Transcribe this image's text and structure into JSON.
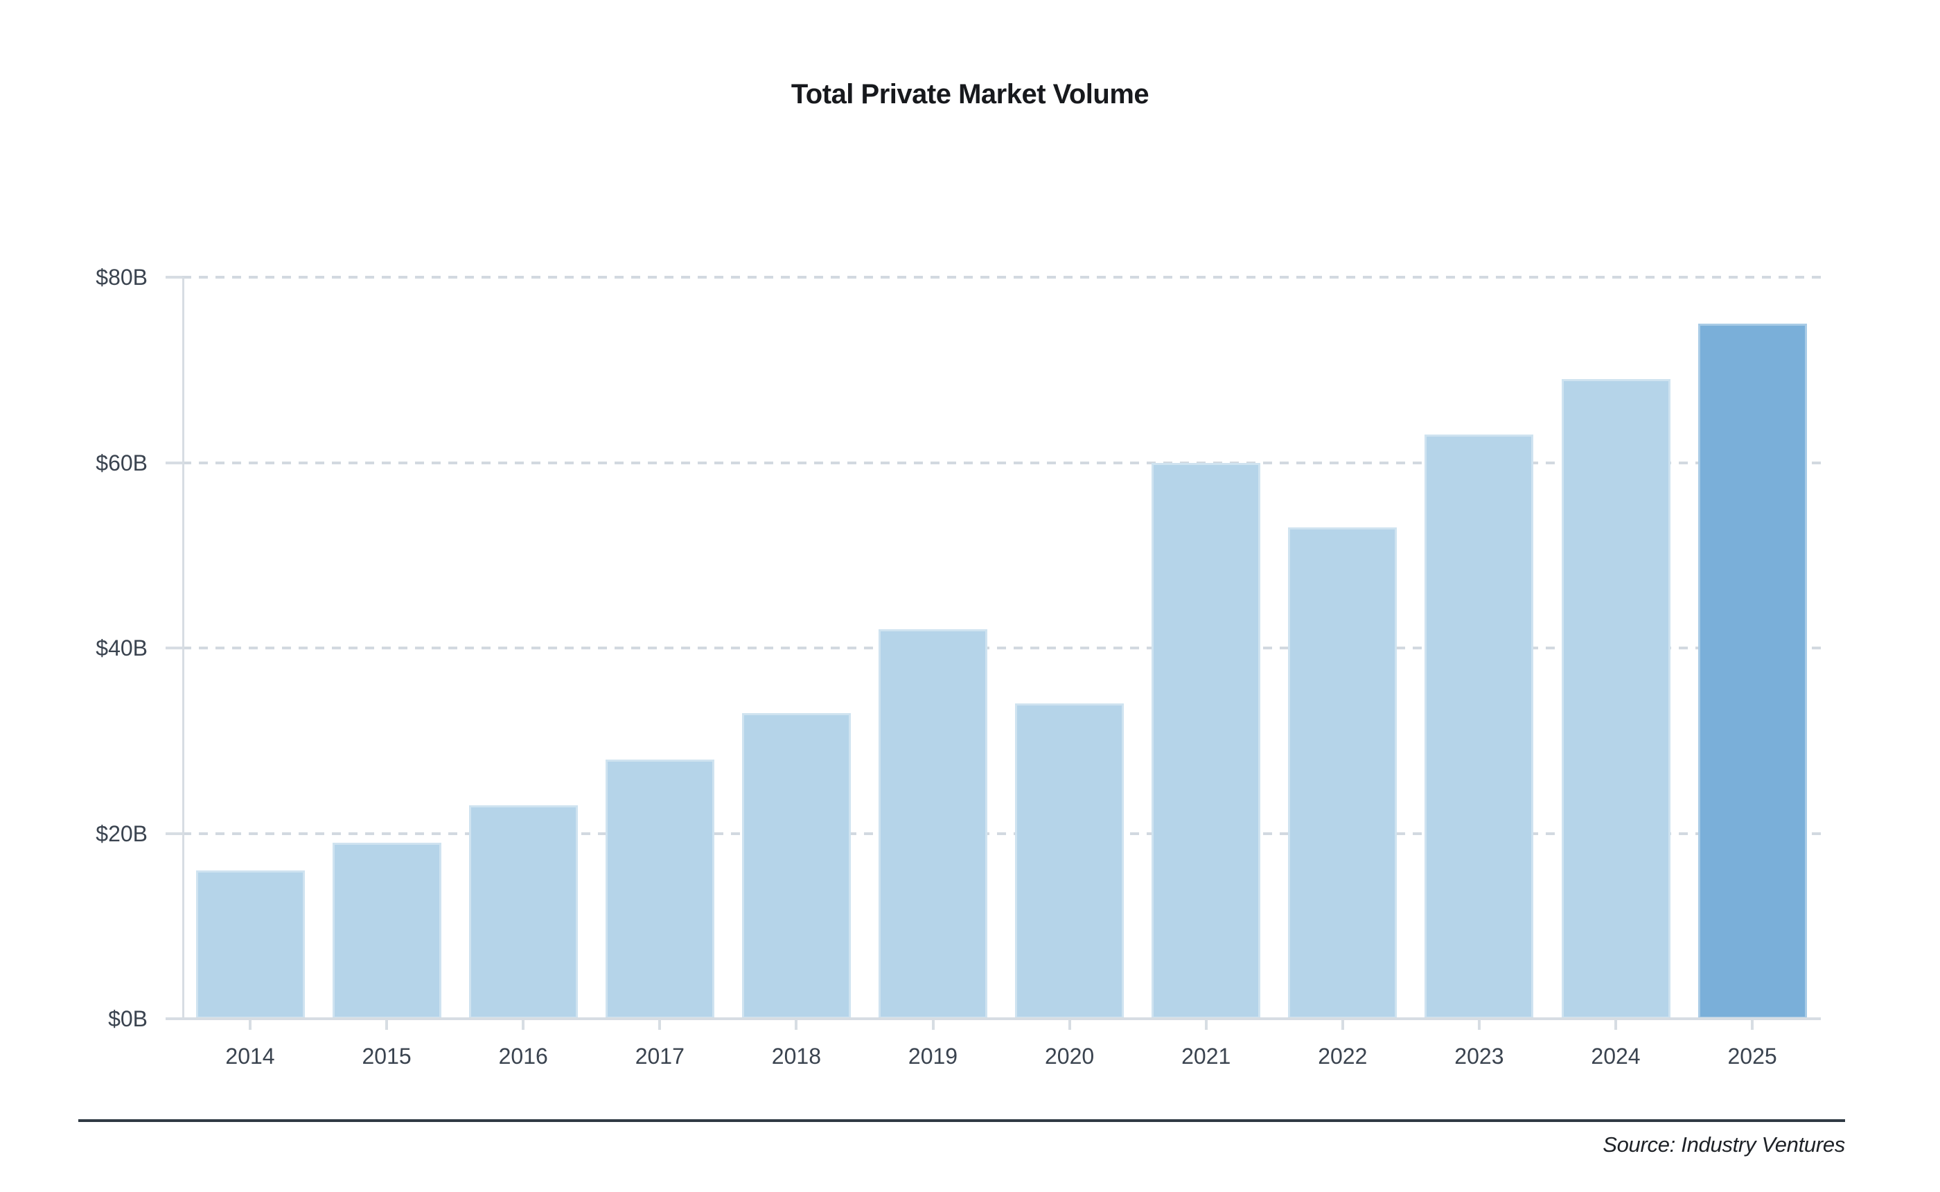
{
  "title": "Total Private Market Volume",
  "source_note": "Source: Industry Ventures",
  "chart_data": {
    "type": "bar",
    "title": "Total Private Market Volume",
    "categories": [
      "2014",
      "2015",
      "2016",
      "2017",
      "2018",
      "2019",
      "2020",
      "2021",
      "2022",
      "2023",
      "2024",
      "2025"
    ],
    "values": [
      16,
      19,
      23,
      28,
      33,
      42,
      34,
      60,
      53,
      63,
      69,
      75
    ],
    "unit": "USD billions",
    "xlabel": "",
    "ylabel": "",
    "ylim": [
      0,
      80
    ],
    "ytick_step": 20,
    "y_ticks": [
      "$0B",
      "$20B",
      "$40B",
      "$60B",
      "$80B"
    ],
    "grid": "horizontal-dashed",
    "legend": "none",
    "data_labels": "none",
    "highlight_category": "2025",
    "colors": {
      "bar_default": "#b5d4e9",
      "bar_highlight": "#7aafd9",
      "gridline": "#d2d9e0",
      "axis_line": "#d7dde3",
      "tick_label": "#3a434f",
      "title": "#17191d",
      "separator": "#303a44",
      "source_text": "#1d2126",
      "background": "#ffffff"
    }
  }
}
